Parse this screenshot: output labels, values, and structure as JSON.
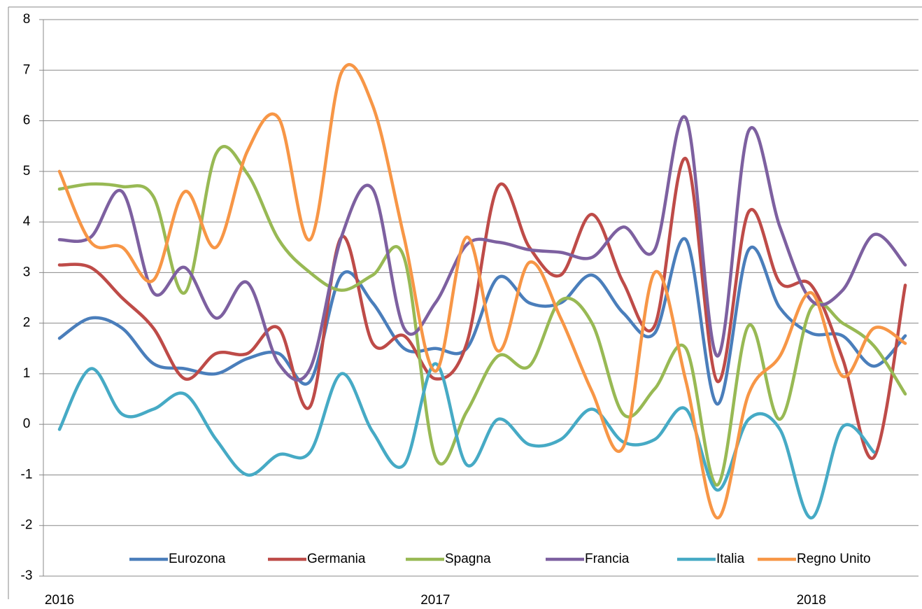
{
  "chart_data": {
    "type": "line",
    "smooth": true,
    "grid": true,
    "legend": "bottom",
    "categories": [
      "2016",
      null,
      null,
      null,
      null,
      null,
      null,
      null,
      null,
      null,
      null,
      null,
      "2017",
      null,
      null,
      null,
      null,
      null,
      null,
      null,
      null,
      null,
      null,
      null,
      "2018",
      null,
      null,
      null
    ],
    "ylim": [
      -3,
      8
    ],
    "yticks": [
      -3,
      -2,
      -1,
      0,
      1,
      2,
      3,
      4,
      5,
      6,
      7,
      8
    ],
    "series": [
      {
        "name": "Eurozona",
        "color": "#4a7ebb",
        "values": [
          1.7,
          2.1,
          1.9,
          1.2,
          1.1,
          1.0,
          1.3,
          1.4,
          0.85,
          2.95,
          2.4,
          1.5,
          1.5,
          1.5,
          2.9,
          2.4,
          2.4,
          2.95,
          2.2,
          1.8,
          3.65,
          0.4,
          3.45,
          2.3,
          1.8,
          1.75,
          1.15,
          1.75
        ]
      },
      {
        "name": "Germania",
        "color": "#be4b48",
        "values": [
          3.15,
          3.1,
          2.5,
          1.9,
          0.9,
          1.4,
          1.4,
          1.9,
          0.35,
          3.7,
          1.6,
          1.75,
          0.9,
          1.6,
          4.7,
          3.5,
          2.95,
          4.15,
          2.8,
          1.95,
          5.25,
          0.85,
          4.2,
          2.8,
          2.75,
          1.3,
          -0.65,
          2.75
        ]
      },
      {
        "name": "Spagna",
        "color": "#98b954",
        "values": [
          4.65,
          4.75,
          4.7,
          4.5,
          2.6,
          5.35,
          4.95,
          3.65,
          3.0,
          2.65,
          2.95,
          3.3,
          -0.65,
          0.25,
          1.35,
          1.15,
          2.45,
          2.0,
          0.2,
          0.7,
          1.5,
          -1.2,
          1.95,
          0.1,
          2.3,
          2.0,
          1.55,
          0.6
        ]
      },
      {
        "name": "Francia",
        "color": "#7d60a0",
        "values": [
          3.65,
          3.7,
          4.6,
          2.6,
          3.1,
          2.1,
          2.8,
          1.2,
          1.1,
          3.7,
          4.65,
          1.9,
          2.4,
          3.55,
          3.6,
          3.45,
          3.4,
          3.3,
          3.9,
          3.45,
          6.05,
          1.35,
          5.8,
          3.9,
          2.45,
          2.65,
          3.75,
          3.15
        ]
      },
      {
        "name": "Italia",
        "color": "#46aac5",
        "values": [
          -0.1,
          1.1,
          0.2,
          0.3,
          0.6,
          -0.3,
          -1.0,
          -0.6,
          -0.55,
          1.0,
          -0.15,
          -0.8,
          1.2,
          -0.8,
          0.1,
          -0.4,
          -0.3,
          0.3,
          -0.35,
          -0.3,
          0.3,
          -1.3,
          0.1,
          -0.1,
          -1.85,
          -0.05,
          -0.55,
          null
        ]
      },
      {
        "name": "Regno Unito",
        "color": "#f79646",
        "values": [
          5.0,
          3.6,
          3.5,
          2.85,
          4.6,
          3.5,
          5.4,
          6.05,
          3.65,
          6.95,
          6.3,
          3.7,
          1.05,
          3.7,
          1.45,
          3.2,
          2.1,
          0.65,
          -0.45,
          3.0,
          0.85,
          -1.85,
          0.6,
          1.35,
          2.6,
          0.95,
          1.9,
          1.6
        ]
      }
    ]
  }
}
